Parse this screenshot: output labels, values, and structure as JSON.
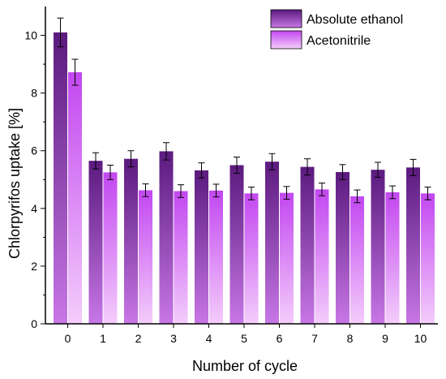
{
  "chart_data": {
    "type": "bar",
    "title": "",
    "xlabel": "Number of cycle",
    "ylabel": "Chlorpyrifos uptake [%]",
    "ylim": [
      0,
      11
    ],
    "yticks": [
      0,
      2,
      4,
      6,
      8,
      10
    ],
    "categories": [
      "0",
      "1",
      "2",
      "3",
      "4",
      "5",
      "6",
      "7",
      "8",
      "9",
      "10"
    ],
    "grid": false,
    "legend_position": "top-right",
    "series": [
      {
        "name": "Absolute ethanol",
        "color_top": "#5b1a7e",
        "color_bottom": "#c777e6",
        "values": [
          10.1,
          5.65,
          5.72,
          5.98,
          5.32,
          5.5,
          5.62,
          5.44,
          5.26,
          5.34,
          5.42
        ],
        "errors": [
          0.5,
          0.28,
          0.28,
          0.3,
          0.26,
          0.28,
          0.28,
          0.28,
          0.26,
          0.26,
          0.28
        ]
      },
      {
        "name": "Acetonitrile",
        "color_top": "#c247f0",
        "color_bottom": "#f4cdfb",
        "values": [
          8.72,
          5.25,
          4.63,
          4.6,
          4.62,
          4.52,
          4.54,
          4.66,
          4.42,
          4.56,
          4.52
        ],
        "errors": [
          0.45,
          0.25,
          0.22,
          0.22,
          0.22,
          0.22,
          0.22,
          0.22,
          0.22,
          0.22,
          0.22
        ]
      }
    ]
  }
}
